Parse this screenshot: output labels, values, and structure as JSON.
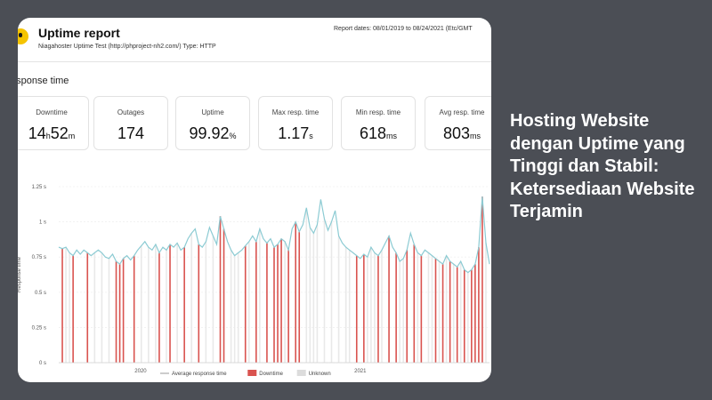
{
  "report": {
    "title": "Uptime report",
    "subtitle": "Niagahoster Uptime Test (http://phproject-nh2.com/) Type: HTTP",
    "report_dates": "Report dates: 08/01/2019 to 08/24/2021 (Etc/GMT",
    "section_title": "esponse time"
  },
  "stats": [
    {
      "label": "Downtime",
      "value_parts": [
        "14",
        "h",
        "52",
        "m"
      ]
    },
    {
      "label": "Outages",
      "value": "174",
      "unit": ""
    },
    {
      "label": "Uptime",
      "value": "99.92",
      "unit": "%"
    },
    {
      "label": "Max resp. time",
      "value": "1.17",
      "unit": "s"
    },
    {
      "label": "Min resp. time",
      "value": "618",
      "unit": "ms"
    },
    {
      "label": "Avg resp. time",
      "value": "803",
      "unit": "ms"
    }
  ],
  "headline": "Hosting Website dengan Uptime yang Tinggi dan Stabil: Ketersediaan Website Terjamin",
  "chart_data": {
    "type": "line",
    "ylabel": "Response time",
    "ylim": [
      0,
      1.25
    ],
    "yticks": [
      "1.25 s",
      "1 s",
      "0.75 s",
      "0.5 s",
      "0.25 s",
      "0 s"
    ],
    "xticks": [
      {
        "label": "2020",
        "t": 0.19
      },
      {
        "label": "2021",
        "t": 0.7
      }
    ],
    "colors": {
      "line": "#8ccbd3",
      "downtime": "#d9534f",
      "unknown": "#e9e9e9"
    },
    "legend": [
      {
        "name": "Average response time",
        "kind": "line"
      },
      {
        "name": "Downtime",
        "kind": "downtime"
      },
      {
        "name": "Unknown",
        "kind": "unknown"
      }
    ],
    "series": [
      {
        "name": "Average response time",
        "values": [
          0.82,
          0.81,
          0.82,
          0.78,
          0.76,
          0.8,
          0.77,
          0.8,
          0.78,
          0.76,
          0.78,
          0.8,
          0.78,
          0.75,
          0.74,
          0.77,
          0.72,
          0.7,
          0.74,
          0.76,
          0.73,
          0.76,
          0.8,
          0.83,
          0.86,
          0.82,
          0.8,
          0.84,
          0.78,
          0.82,
          0.8,
          0.84,
          0.82,
          0.85,
          0.8,
          0.82,
          0.88,
          0.92,
          0.95,
          0.84,
          0.82,
          0.86,
          0.96,
          0.9,
          0.84,
          1.04,
          0.95,
          0.86,
          0.8,
          0.76,
          0.78,
          0.8,
          0.83,
          0.86,
          0.9,
          0.86,
          0.95,
          0.88,
          0.85,
          0.88,
          0.82,
          0.84,
          0.88,
          0.86,
          0.8,
          0.95,
          1.0,
          0.93,
          0.98,
          1.1,
          0.96,
          0.92,
          0.98,
          1.16,
          1.02,
          0.94,
          1.0,
          1.08,
          0.9,
          0.85,
          0.82,
          0.8,
          0.78,
          0.76,
          0.74,
          0.77,
          0.75,
          0.82,
          0.78,
          0.76,
          0.8,
          0.85,
          0.9,
          0.82,
          0.78,
          0.72,
          0.74,
          0.8,
          0.92,
          0.84,
          0.78,
          0.76,
          0.8,
          0.78,
          0.76,
          0.74,
          0.72,
          0.7,
          0.76,
          0.72,
          0.7,
          0.68,
          0.72,
          0.66,
          0.64,
          0.66,
          0.7,
          0.82,
          1.18,
          0.85,
          0.7
        ]
      }
    ],
    "downtime_index": [
      1,
      4,
      8,
      16,
      17,
      18,
      21,
      28,
      31,
      35,
      39,
      45,
      46,
      52,
      55,
      58,
      60,
      61,
      62,
      64,
      66,
      67,
      83,
      85,
      89,
      92,
      94,
      97,
      99,
      101,
      105,
      107,
      109,
      111,
      113,
      115,
      116,
      117,
      118
    ],
    "unknown_index": [
      2,
      3,
      10,
      12,
      14,
      23,
      25,
      27,
      30,
      33,
      37,
      41,
      43,
      48,
      49,
      50,
      53,
      56,
      63,
      69,
      70,
      71,
      72,
      74,
      76,
      78,
      80,
      81,
      86,
      87,
      88,
      90,
      95,
      96,
      100,
      103,
      104,
      106,
      108,
      110,
      112,
      114,
      119
    ]
  }
}
